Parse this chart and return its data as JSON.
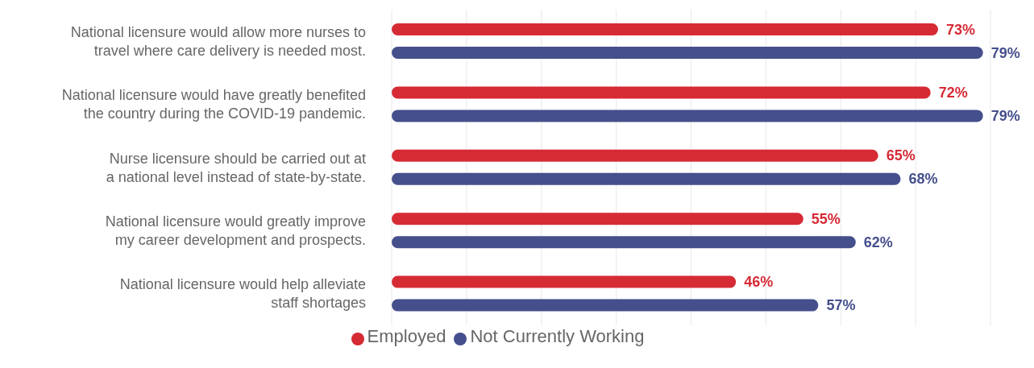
{
  "chart_data": {
    "type": "bar",
    "orientation": "horizontal",
    "categories": [
      "National licensure would allow more nurses to\ntravel where care delivery is needed most.",
      "National licensure would have greatly benefited\nthe country during the COVID-19 pandemic.",
      "Nurse licensure should be carried out at\na national level instead of state-by-state.",
      "National licensure would greatly improve\nmy career development and prospects.",
      "National licensure would help alleviate\nstaff shortages"
    ],
    "series": [
      {
        "name": "Employed",
        "color": "#d62b35",
        "values": [
          73,
          72,
          65,
          55,
          46
        ],
        "value_labels": [
          "73%",
          "72%",
          "65%",
          "55%",
          "46%"
        ]
      },
      {
        "name": "Not Currently Working",
        "color": "#454f8c",
        "values": [
          79,
          79,
          68,
          62,
          57
        ],
        "value_labels": [
          "79%",
          "79%",
          "68%",
          "62%",
          "57%"
        ]
      }
    ],
    "xlim": [
      0,
      80
    ],
    "xticks": [
      {
        "value": 0,
        "label": null
      },
      {
        "value": 10,
        "label": null
      },
      {
        "value": 20,
        "label": null
      },
      {
        "value": 30,
        "label": null
      },
      {
        "value": 40,
        "label": null
      },
      {
        "value": 50,
        "label": null
      },
      {
        "value": 60,
        "label": null
      },
      {
        "value": 70,
        "label": null
      },
      {
        "value": 80,
        "label": null
      }
    ],
    "grid": "x",
    "legend": "bottom",
    "tick_labels": "y"
  }
}
